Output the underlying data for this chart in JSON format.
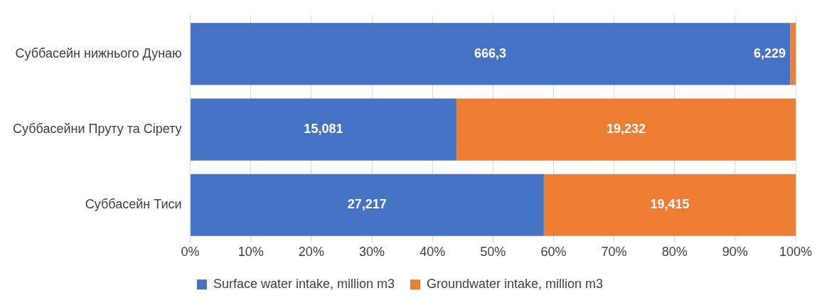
{
  "chart_data": {
    "type": "bar",
    "orientation": "horizontal",
    "stacked": true,
    "categories": [
      "Суббасейн нижнього Дунаю",
      "Суббасейни Пруту та Сірету",
      "Суббасейн Тиси"
    ],
    "series": [
      {
        "name": "Surface water intake, million m3",
        "color": "#4472c4",
        "values": [
          99.1,
          44,
          58.4
        ]
      },
      {
        "name": "Groundwater intake, million m3",
        "color": "#ed7d31",
        "values": [
          0.9,
          56,
          41.6
        ]
      }
    ],
    "annotations": [
      {
        "text": "666,3",
        "x": 49.55,
        "y": "Суббасейн нижнього Дунаю"
      },
      {
        "text": "6,229",
        "x": 99.55,
        "y": "Суббасейн нижнього Дунаю"
      },
      {
        "text": "15,081",
        "x": 22,
        "y": "Суббасейни Пруту та Сірету"
      },
      {
        "text": "19,232",
        "x": 72,
        "y": "Суббасейни Пруту та Сірету"
      },
      {
        "text": "27,217",
        "x": 29.2,
        "y": "Суббасейн Тиси"
      },
      {
        "text": "19,415",
        "x": 79.2,
        "y": "Суббасейн Тиси"
      }
    ],
    "xlim": [
      0,
      100
    ],
    "xticks": [
      {
        "value": 0,
        "label": "0%"
      },
      {
        "value": 10,
        "label": "10%"
      },
      {
        "value": 20,
        "label": "20%"
      },
      {
        "value": 30,
        "label": "30%"
      },
      {
        "value": 40,
        "label": "40%"
      },
      {
        "value": 50,
        "label": "50%"
      },
      {
        "value": 60,
        "label": "60%"
      },
      {
        "value": 70,
        "label": "70%"
      },
      {
        "value": 80,
        "label": "80%"
      },
      {
        "value": 90,
        "label": "90%"
      },
      {
        "value": 100,
        "label": "100%"
      }
    ],
    "grid": "x",
    "legend": "bottom"
  }
}
